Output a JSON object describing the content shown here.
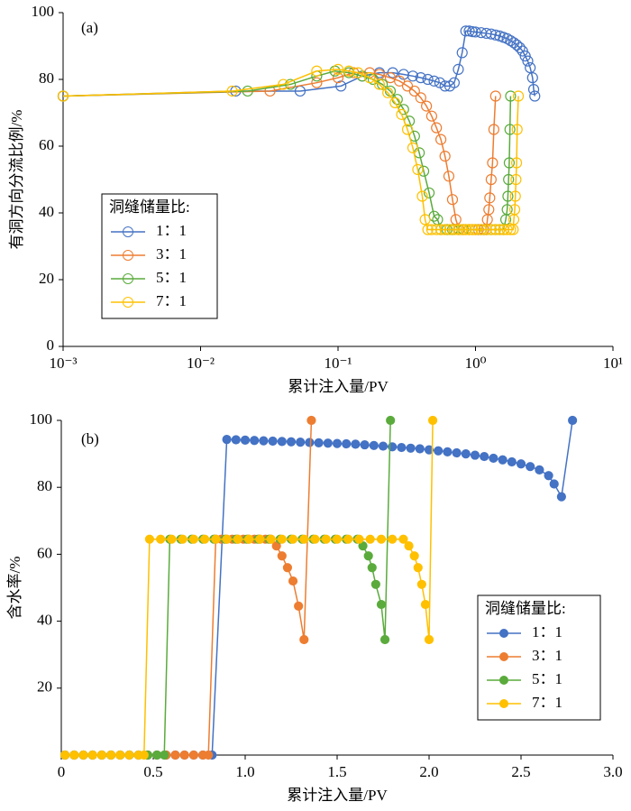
{
  "chart_data": [
    {
      "type": "line",
      "annotation": "(a)",
      "x_label": "累计注入量/PV",
      "y_label": "有洞方向分流比例/%",
      "xscale": "log",
      "xlim": [
        0.001,
        10
      ],
      "xticks": [
        {
          "value": 0.001,
          "label": "10⁻³"
        },
        {
          "value": 0.01,
          "label": "10⁻²"
        },
        {
          "value": 0.1,
          "label": "10⁻¹"
        },
        {
          "value": 1,
          "label": "10⁰"
        },
        {
          "value": 10,
          "label": "10¹"
        }
      ],
      "ylim": [
        0,
        100
      ],
      "yticks": [
        0,
        20,
        40,
        60,
        80,
        100
      ],
      "grid": false,
      "marker": "open-circle",
      "legend_title": "洞缝储量比:",
      "legend": "lower-left",
      "series": [
        {
          "name": "1：1",
          "color": "#4472c4",
          "x": [
            0.001,
            0.018,
            0.053,
            0.105,
            0.15,
            0.2,
            0.25,
            0.3,
            0.35,
            0.4,
            0.45,
            0.5,
            0.55,
            0.6,
            0.65,
            0.7,
            0.75,
            0.8,
            0.85,
            0.9,
            0.95,
            1.0,
            1.1,
            1.2,
            1.3,
            1.4,
            1.5,
            1.6,
            1.7,
            1.8,
            1.9,
            2.0,
            2.1,
            2.2,
            2.3,
            2.4,
            2.5,
            2.6,
            2.65,
            2.7
          ],
          "values": [
            75,
            76.5,
            76.5,
            78,
            81,
            82,
            82,
            81.5,
            81,
            80.5,
            80,
            79.5,
            79,
            78,
            78,
            79,
            83,
            88,
            94.5,
            94.5,
            94.3,
            94.2,
            94,
            93.8,
            93.6,
            93.3,
            93,
            92.6,
            92.2,
            91.6,
            91,
            90.3,
            89.5,
            88.5,
            87,
            85.5,
            83.5,
            80.5,
            77,
            75
          ]
        },
        {
          "name": "3：1",
          "color": "#ed7d31",
          "x": [
            0.001,
            0.032,
            0.07,
            0.1,
            0.13,
            0.17,
            0.2,
            0.24,
            0.28,
            0.32,
            0.36,
            0.4,
            0.44,
            0.48,
            0.52,
            0.56,
            0.6,
            0.64,
            0.68,
            0.72,
            0.76,
            0.8,
            0.85,
            0.9,
            0.95,
            1.0,
            1.05,
            1.1,
            1.15,
            1.2,
            1.22,
            1.25,
            1.27,
            1.3,
            1.33,
            1.36,
            1.4
          ],
          "values": [
            75,
            76.5,
            79,
            80.5,
            82,
            82,
            81.5,
            80.5,
            79.5,
            78,
            76.5,
            74.5,
            72,
            69,
            65.5,
            62,
            57,
            51,
            44,
            38,
            35,
            35,
            35,
            35,
            35,
            35,
            35,
            35,
            35,
            35,
            38,
            41,
            44.5,
            50,
            55,
            65,
            75
          ]
        },
        {
          "name": "5：1",
          "color": "#5aab3c",
          "x": [
            0.001,
            0.022,
            0.045,
            0.07,
            0.095,
            0.12,
            0.15,
            0.18,
            0.21,
            0.24,
            0.27,
            0.3,
            0.33,
            0.36,
            0.39,
            0.42,
            0.46,
            0.5,
            0.53,
            0.56,
            0.62,
            0.68,
            0.75,
            0.82,
            0.9,
            1.0,
            1.1,
            1.2,
            1.3,
            1.4,
            1.5,
            1.6,
            1.66,
            1.7,
            1.72,
            1.74,
            1.76,
            1.78,
            1.8
          ],
          "values": [
            75,
            76.5,
            78.5,
            81,
            82.5,
            82,
            81,
            80,
            78.5,
            76.5,
            74,
            71,
            67.5,
            63,
            58,
            52.5,
            46,
            39,
            38,
            35,
            35,
            35,
            35,
            35,
            35,
            35,
            35,
            35,
            35,
            35,
            35,
            35,
            38,
            41,
            45,
            50,
            55,
            65,
            75
          ]
        },
        {
          "name": "7：1",
          "color": "#ffc000",
          "x": [
            0.001,
            0.017,
            0.04,
            0.07,
            0.1,
            0.12,
            0.14,
            0.17,
            0.2,
            0.23,
            0.26,
            0.29,
            0.32,
            0.35,
            0.38,
            0.41,
            0.43,
            0.45,
            0.48,
            0.52,
            0.56,
            0.6,
            0.65,
            0.7,
            0.75,
            0.8,
            0.85,
            0.9,
            0.95,
            1.0,
            1.1,
            1.2,
            1.3,
            1.4,
            1.5,
            1.6,
            1.7,
            1.8,
            1.88,
            1.9,
            1.93,
            1.95,
            1.97,
            1.99,
            2.01,
            2.05
          ],
          "values": [
            75,
            76.5,
            78.5,
            82.5,
            83,
            82.5,
            82,
            80.5,
            78.5,
            76,
            73,
            69.5,
            65,
            59.5,
            53,
            45,
            38,
            35,
            35,
            35,
            35,
            35,
            35,
            35,
            35,
            35,
            35,
            35,
            35,
            35,
            35,
            35,
            35,
            35,
            35,
            35,
            35,
            35,
            35,
            38,
            41,
            45,
            50,
            55,
            65,
            75
          ]
        }
      ]
    },
    {
      "type": "line",
      "annotation": "(b)",
      "x_label": "累计注入量/PV",
      "y_label": "含水率/%",
      "xscale": "linear",
      "xlim": [
        0,
        3
      ],
      "xticks": [
        0,
        0.5,
        {
          "value": 1,
          "label": "1.0"
        },
        1.5,
        {
          "value": 2,
          "label": "2.0"
        },
        2.5,
        {
          "value": 3,
          "label": "3.0"
        }
      ],
      "ylim": [
        0,
        100
      ],
      "yticks": [
        20,
        40,
        60,
        80,
        100
      ],
      "grid": false,
      "marker": "filled-circle",
      "legend_title": "洞缝储量比:",
      "legend": "lower-right",
      "series": [
        {
          "name": "1：1",
          "color": "#4472c4",
          "x": [
            0.02,
            0.07,
            0.12,
            0.17,
            0.22,
            0.27,
            0.32,
            0.37,
            0.42,
            0.47,
            0.52,
            0.57,
            0.62,
            0.67,
            0.72,
            0.77,
            0.82,
            0.9,
            0.95,
            1.0,
            1.05,
            1.1,
            1.15,
            1.2,
            1.25,
            1.3,
            1.35,
            1.4,
            1.45,
            1.5,
            1.55,
            1.6,
            1.65,
            1.7,
            1.75,
            1.8,
            1.85,
            1.9,
            1.95,
            2.0,
            2.05,
            2.1,
            2.15,
            2.2,
            2.25,
            2.3,
            2.35,
            2.4,
            2.45,
            2.5,
            2.55,
            2.6,
            2.65,
            2.68,
            2.72,
            2.78
          ],
          "values": [
            0,
            0,
            0,
            0,
            0,
            0,
            0,
            0,
            0,
            0,
            0,
            0,
            0,
            0,
            0,
            0,
            0,
            94.3,
            94.2,
            94.1,
            94,
            93.9,
            93.8,
            93.7,
            93.6,
            93.5,
            93.4,
            93.3,
            93.2,
            93.1,
            93,
            92.9,
            92.7,
            92.5,
            92.3,
            92.1,
            91.9,
            91.7,
            91.5,
            91.2,
            90.9,
            90.6,
            90.3,
            90,
            89.6,
            89.2,
            88.7,
            88.2,
            87.6,
            87,
            86.2,
            85.2,
            83.5,
            81,
            77.2,
            100
          ]
        },
        {
          "name": "3：1",
          "color": "#ed7d31",
          "x": [
            0.02,
            0.07,
            0.12,
            0.17,
            0.22,
            0.27,
            0.32,
            0.37,
            0.42,
            0.47,
            0.52,
            0.57,
            0.62,
            0.67,
            0.72,
            0.77,
            0.8,
            0.84,
            0.87,
            0.9,
            0.93,
            0.96,
            0.99,
            1.02,
            1.05,
            1.08,
            1.11,
            1.14,
            1.17,
            1.2,
            1.23,
            1.26,
            1.29,
            1.32,
            1.36
          ],
          "values": [
            0,
            0,
            0,
            0,
            0,
            0,
            0,
            0,
            0,
            0,
            0,
            0,
            0,
            0,
            0,
            0,
            0,
            64.5,
            64.5,
            64.5,
            64.5,
            64.5,
            64.5,
            64.5,
            64.5,
            64.5,
            64.5,
            64.5,
            62.5,
            59.5,
            56,
            52,
            44.5,
            34.5,
            100
          ]
        },
        {
          "name": "5：1",
          "color": "#5aab3c",
          "x": [
            0.02,
            0.07,
            0.12,
            0.17,
            0.22,
            0.27,
            0.32,
            0.37,
            0.42,
            0.47,
            0.52,
            0.56,
            0.59,
            0.65,
            0.71,
            0.77,
            0.83,
            0.89,
            0.95,
            1.01,
            1.07,
            1.13,
            1.19,
            1.25,
            1.31,
            1.37,
            1.43,
            1.49,
            1.55,
            1.61,
            1.64,
            1.67,
            1.69,
            1.71,
            1.74,
            1.76,
            1.79
          ],
          "values": [
            0,
            0,
            0,
            0,
            0,
            0,
            0,
            0,
            0,
            0,
            0,
            0,
            64.5,
            64.5,
            64.5,
            64.5,
            64.5,
            64.5,
            64.5,
            64.5,
            64.5,
            64.5,
            64.5,
            64.5,
            64.5,
            64.5,
            64.5,
            64.5,
            64.5,
            64.5,
            62.5,
            59.5,
            56,
            51,
            45,
            34.5,
            100
          ]
        },
        {
          "name": "7：1",
          "color": "#ffc000",
          "x": [
            0.02,
            0.07,
            0.12,
            0.17,
            0.22,
            0.27,
            0.32,
            0.37,
            0.42,
            0.45,
            0.48,
            0.54,
            0.6,
            0.66,
            0.72,
            0.78,
            0.84,
            0.9,
            0.96,
            1.02,
            1.08,
            1.14,
            1.2,
            1.26,
            1.32,
            1.38,
            1.44,
            1.5,
            1.56,
            1.62,
            1.68,
            1.74,
            1.8,
            1.86,
            1.89,
            1.92,
            1.94,
            1.96,
            1.98,
            2.0,
            2.02
          ],
          "values": [
            0,
            0,
            0,
            0,
            0,
            0,
            0,
            0,
            0,
            0,
            64.5,
            64.5,
            64.5,
            64.5,
            64.5,
            64.5,
            64.5,
            64.5,
            64.5,
            64.5,
            64.5,
            64.5,
            64.5,
            64.5,
            64.5,
            64.5,
            64.5,
            64.5,
            64.5,
            64.5,
            64.5,
            64.5,
            64.5,
            64.5,
            62.5,
            59.5,
            56,
            51,
            45,
            34.5,
            100
          ]
        }
      ]
    }
  ]
}
